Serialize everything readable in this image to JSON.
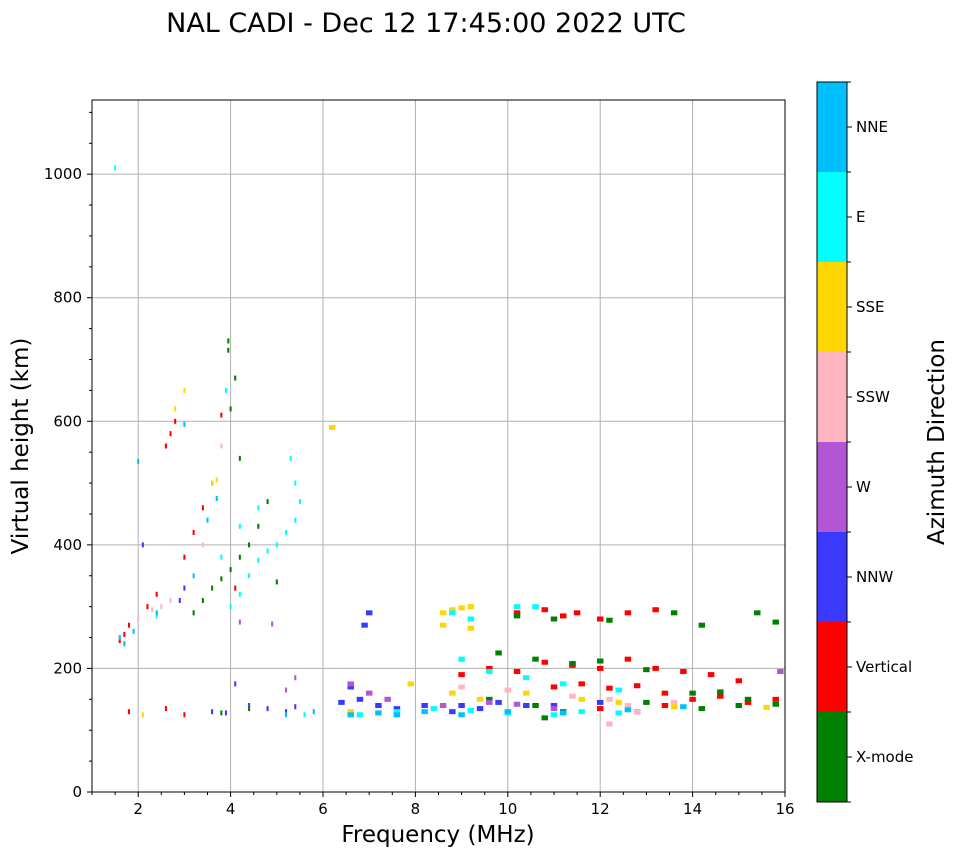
{
  "chart_data": {
    "type": "scatter",
    "title": "NAL CADI - Dec 12 17:45:00 2022 UTC",
    "xlabel": "Frequency (MHz)",
    "ylabel": "Virtual height (km)",
    "xlim": [
      1,
      16
    ],
    "ylim": [
      0,
      1120
    ],
    "xticks": [
      2,
      4,
      6,
      8,
      10,
      12,
      14,
      16
    ],
    "yticks": [
      0,
      200,
      400,
      600,
      800,
      1000
    ],
    "xtick_labels": [
      "2",
      "4",
      "6",
      "8",
      "10",
      "12",
      "14",
      "16"
    ],
    "ytick_labels": [
      "0",
      "200",
      "400",
      "600",
      "800",
      "1000"
    ],
    "grid": true,
    "colorbar": {
      "label": "Azimuth Direction",
      "categories": [
        {
          "name": "X-mode",
          "color": "#008000"
        },
        {
          "name": "Vertical",
          "color": "#ff0000"
        },
        {
          "name": "NNW",
          "color": "#3a3aff"
        },
        {
          "name": "W",
          "color": "#b356d6"
        },
        {
          "name": "SSW",
          "color": "#ffb6c1"
        },
        {
          "name": "SSE",
          "color": "#ffd700"
        },
        {
          "name": "E",
          "color": "#00ffff"
        },
        {
          "name": "NNE",
          "color": "#00bfff"
        }
      ]
    },
    "series": [
      {
        "name": "Vertical",
        "points": [
          [
            1.6,
            245
          ],
          [
            1.7,
            255
          ],
          [
            1.8,
            270
          ],
          [
            2.2,
            300
          ],
          [
            2.4,
            320
          ],
          [
            2.6,
            560
          ],
          [
            2.7,
            580
          ],
          [
            2.8,
            600
          ],
          [
            3.0,
            380
          ],
          [
            3.2,
            420
          ],
          [
            3.4,
            460
          ],
          [
            3.6,
            500
          ],
          [
            3.8,
            610
          ],
          [
            4.1,
            330
          ],
          [
            10.2,
            290
          ],
          [
            10.8,
            295
          ],
          [
            11.2,
            285
          ],
          [
            11.5,
            290
          ],
          [
            12.0,
            280
          ],
          [
            12.6,
            290
          ],
          [
            13.2,
            295
          ],
          [
            9.0,
            190
          ],
          [
            9.6,
            200
          ],
          [
            10.2,
            195
          ],
          [
            10.8,
            210
          ],
          [
            11.4,
            205
          ],
          [
            12.0,
            200
          ],
          [
            12.6,
            215
          ],
          [
            13.2,
            200
          ],
          [
            13.8,
            195
          ],
          [
            14.4,
            190
          ],
          [
            15.0,
            180
          ],
          [
            11.0,
            170
          ],
          [
            11.6,
            175
          ],
          [
            12.2,
            168
          ],
          [
            12.8,
            172
          ],
          [
            13.4,
            160
          ],
          [
            14.0,
            150
          ],
          [
            14.6,
            155
          ],
          [
            15.2,
            145
          ],
          [
            15.8,
            150
          ],
          [
            12.0,
            135
          ],
          [
            12.8,
            130
          ],
          [
            13.4,
            140
          ],
          [
            1.8,
            130
          ],
          [
            2.6,
            135
          ],
          [
            3.0,
            125
          ]
        ]
      },
      {
        "name": "X-mode",
        "points": [
          [
            3.2,
            290
          ],
          [
            3.4,
            310
          ],
          [
            3.6,
            330
          ],
          [
            3.8,
            345
          ],
          [
            4.0,
            360
          ],
          [
            4.2,
            380
          ],
          [
            4.4,
            400
          ],
          [
            4.6,
            430
          ],
          [
            4.8,
            470
          ],
          [
            4.0,
            620
          ],
          [
            4.1,
            670
          ],
          [
            3.95,
            715
          ],
          [
            3.95,
            730
          ],
          [
            4.2,
            540
          ],
          [
            5.0,
            340
          ],
          [
            10.2,
            285
          ],
          [
            11.0,
            280
          ],
          [
            12.2,
            278
          ],
          [
            13.6,
            290
          ],
          [
            14.2,
            270
          ],
          [
            15.4,
            290
          ],
          [
            15.8,
            275
          ],
          [
            9.8,
            225
          ],
          [
            10.6,
            215
          ],
          [
            11.4,
            208
          ],
          [
            12.0,
            212
          ],
          [
            13.0,
            198
          ],
          [
            14.0,
            160
          ],
          [
            14.6,
            162
          ],
          [
            15.2,
            150
          ],
          [
            15.8,
            142
          ],
          [
            13.0,
            145
          ],
          [
            14.2,
            135
          ],
          [
            15.0,
            140
          ],
          [
            3.8,
            128
          ],
          [
            4.4,
            135
          ],
          [
            9.6,
            150
          ],
          [
            10.6,
            140
          ],
          [
            11.2,
            130
          ],
          [
            10.8,
            120
          ]
        ]
      },
      {
        "name": "NNW",
        "points": [
          [
            4.4,
            140
          ],
          [
            4.8,
            135
          ],
          [
            5.2,
            130
          ],
          [
            5.4,
            138
          ],
          [
            6.4,
            145
          ],
          [
            6.8,
            150
          ],
          [
            7.2,
            140
          ],
          [
            7.6,
            135
          ],
          [
            8.2,
            140
          ],
          [
            8.8,
            130
          ],
          [
            9.4,
            135
          ],
          [
            9.8,
            145
          ],
          [
            10.4,
            140
          ],
          [
            3.6,
            130
          ],
          [
            3.9,
            128
          ],
          [
            4.1,
            175
          ],
          [
            6.6,
            170
          ],
          [
            6.9,
            270
          ],
          [
            7.0,
            290
          ],
          [
            9.0,
            140
          ],
          [
            11.0,
            140
          ],
          [
            12.0,
            145
          ],
          [
            2.1,
            400
          ],
          [
            3.0,
            330
          ],
          [
            2.9,
            310
          ]
        ]
      },
      {
        "name": "W",
        "points": [
          [
            4.9,
            272
          ],
          [
            4.2,
            275
          ],
          [
            5.2,
            165
          ],
          [
            5.4,
            185
          ],
          [
            6.6,
            175
          ],
          [
            7.0,
            160
          ],
          [
            7.4,
            150
          ],
          [
            8.6,
            140
          ],
          [
            9.6,
            145
          ],
          [
            10.2,
            142
          ],
          [
            11.0,
            135
          ],
          [
            15.9,
            195
          ]
        ]
      },
      {
        "name": "SSW",
        "points": [
          [
            2.3,
            295
          ],
          [
            2.5,
            300
          ],
          [
            2.7,
            310
          ],
          [
            3.4,
            400
          ],
          [
            3.8,
            560
          ],
          [
            9.0,
            170
          ],
          [
            10.0,
            165
          ],
          [
            11.4,
            155
          ],
          [
            12.2,
            150
          ],
          [
            12.6,
            140
          ],
          [
            12.2,
            110
          ],
          [
            12.8,
            130
          ],
          [
            13.6,
            145
          ],
          [
            2.0,
            280
          ]
        ]
      },
      {
        "name": "SSE",
        "points": [
          [
            2.1,
            125
          ],
          [
            3.6,
            500
          ],
          [
            3.7,
            505
          ],
          [
            2.8,
            620
          ],
          [
            3.0,
            650
          ],
          [
            6.2,
            590
          ],
          [
            8.6,
            290
          ],
          [
            8.8,
            295
          ],
          [
            9.0,
            298
          ],
          [
            9.2,
            300
          ],
          [
            8.6,
            270
          ],
          [
            9.2,
            265
          ],
          [
            7.9,
            175
          ],
          [
            8.8,
            160
          ],
          [
            9.4,
            150
          ],
          [
            10.4,
            160
          ],
          [
            11.6,
            150
          ],
          [
            12.4,
            145
          ],
          [
            13.6,
            138
          ],
          [
            15.6,
            137
          ],
          [
            6.6,
            130
          ]
        ]
      },
      {
        "name": "E",
        "points": [
          [
            4.0,
            300
          ],
          [
            4.2,
            320
          ],
          [
            4.4,
            350
          ],
          [
            4.6,
            375
          ],
          [
            4.8,
            390
          ],
          [
            5.0,
            400
          ],
          [
            5.2,
            420
          ],
          [
            5.4,
            440
          ],
          [
            5.5,
            470
          ],
          [
            5.4,
            500
          ],
          [
            5.3,
            540
          ],
          [
            4.2,
            430
          ],
          [
            4.6,
            460
          ],
          [
            3.8,
            380
          ],
          [
            3.9,
            650
          ],
          [
            1.5,
            1010
          ],
          [
            8.8,
            290
          ],
          [
            9.2,
            280
          ],
          [
            10.2,
            300
          ],
          [
            10.6,
            300
          ],
          [
            9.0,
            215
          ],
          [
            9.6,
            195
          ],
          [
            10.4,
            185
          ],
          [
            11.2,
            175
          ],
          [
            12.4,
            165
          ],
          [
            5.6,
            125
          ],
          [
            6.8,
            125
          ],
          [
            7.6,
            130
          ],
          [
            8.4,
            135
          ],
          [
            9.2,
            132
          ],
          [
            10.0,
            128
          ],
          [
            11.0,
            125
          ],
          [
            11.6,
            130
          ],
          [
            12.4,
            128
          ],
          [
            2.4,
            285
          ]
        ]
      },
      {
        "name": "NNE",
        "points": [
          [
            1.6,
            250
          ],
          [
            1.7,
            240
          ],
          [
            1.9,
            260
          ],
          [
            2.4,
            290
          ],
          [
            3.2,
            350
          ],
          [
            3.5,
            440
          ],
          [
            3.7,
            475
          ],
          [
            5.2,
            125
          ],
          [
            5.8,
            130
          ],
          [
            6.6,
            125
          ],
          [
            7.2,
            128
          ],
          [
            7.6,
            125
          ],
          [
            8.2,
            130
          ],
          [
            9.0,
            125
          ],
          [
            10.0,
            130
          ],
          [
            11.2,
            128
          ],
          [
            12.6,
            133
          ],
          [
            13.8,
            138
          ],
          [
            2.0,
            535
          ],
          [
            3.0,
            595
          ]
        ]
      }
    ]
  }
}
